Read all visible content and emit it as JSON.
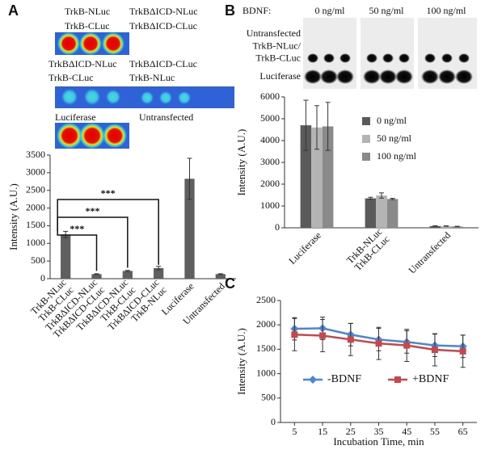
{
  "chart_data": [
    {
      "type": "bar",
      "panel_label": "A",
      "image_labels": [
        "TrkB-NLuc",
        "TrkB-CLuc",
        "TrkBΔICD-NLuc",
        "TrkBΔICD-CLuc",
        "TrkBΔICD-NLuc",
        "TrkB-CLuc",
        "TrkBΔICD-CLuc",
        "TrkB-NLuc",
        "Luciferase",
        "Untransfected"
      ],
      "categories": [
        [
          "TrkB-NLuc",
          "TrkB-CLuc"
        ],
        [
          "TrkBΔICD-NLuc",
          "TrkBΔICD-CLuc"
        ],
        [
          "TrkBΔICD-NLuc",
          "TrkB-CLuc"
        ],
        [
          "TrkBΔICD-CLuc",
          "TrkB-NLuc"
        ],
        [
          "Luciferase"
        ],
        [
          "Untransfected"
        ]
      ],
      "values": [
        1250,
        130,
        220,
        300,
        2830,
        130
      ],
      "errors": [
        90,
        10,
        15,
        50,
        580,
        10
      ],
      "color": "#5f5f5f",
      "ylim": [
        0,
        3500
      ],
      "yticks": [
        0,
        500,
        1000,
        1500,
        2000,
        2500,
        3000,
        3500
      ],
      "ylabel": "Intensity (A.U.)",
      "annotations": [
        "***",
        "***",
        "***"
      ]
    },
    {
      "type": "bar",
      "panel_label": "B",
      "image_header": "BDNF:",
      "image_columns": [
        "0 ng/ml",
        "50 ng/ml",
        "100 ng/ml"
      ],
      "image_rows": [
        [
          "Untransfected"
        ],
        [
          "TrkB-NLuc/",
          "TrkB-CLuc"
        ],
        [
          "Luciferase"
        ]
      ],
      "categories": [
        [
          "Luciferase"
        ],
        [
          "TrkB-NLuc",
          "TrkB-CLuc"
        ],
        [
          "Untransfected"
        ]
      ],
      "series": [
        {
          "name": "0 ng/ml",
          "color": "#5a5a5a",
          "values": [
            4700,
            1350,
            80
          ],
          "errors": [
            1150,
            50,
            10
          ]
        },
        {
          "name": "50 ng/ml",
          "color": "#b4b4b4",
          "values": [
            4600,
            1480,
            80
          ],
          "errors": [
            1000,
            120,
            10
          ]
        },
        {
          "name": "100 ng/ml",
          "color": "#8a8a8a",
          "values": [
            4650,
            1320,
            60
          ],
          "errors": [
            1100,
            30,
            10
          ]
        }
      ],
      "ylim": [
        0,
        6000
      ],
      "yticks": [
        0,
        1000,
        2000,
        3000,
        4000,
        5000,
        6000
      ],
      "ylabel": "Intensity (A.U.)"
    },
    {
      "type": "line",
      "panel_label": "C",
      "x": [
        5,
        15,
        25,
        35,
        45,
        55,
        65
      ],
      "series": [
        {
          "name": "-BDNF",
          "color": "#4a86d6",
          "marker": "diamond",
          "values": [
            1920,
            1930,
            1800,
            1700,
            1650,
            1580,
            1560
          ],
          "errors": [
            230,
            230,
            230,
            230,
            230,
            230,
            230
          ]
        },
        {
          "name": "+BDNF",
          "color": "#c9474a",
          "marker": "square",
          "values": [
            1800,
            1780,
            1700,
            1620,
            1580,
            1490,
            1460
          ],
          "errors": [
            330,
            330,
            330,
            330,
            330,
            330,
            330
          ]
        }
      ],
      "xlim": [
        0,
        70
      ],
      "xticks": [
        5,
        15,
        25,
        35,
        45,
        55,
        65
      ],
      "ylim": [
        0,
        2500
      ],
      "yticks": [
        0,
        500,
        1000,
        1500,
        2000,
        2500
      ],
      "xlabel": "Incubation Time, min",
      "ylabel": "Intensity (A.U.)"
    }
  ]
}
